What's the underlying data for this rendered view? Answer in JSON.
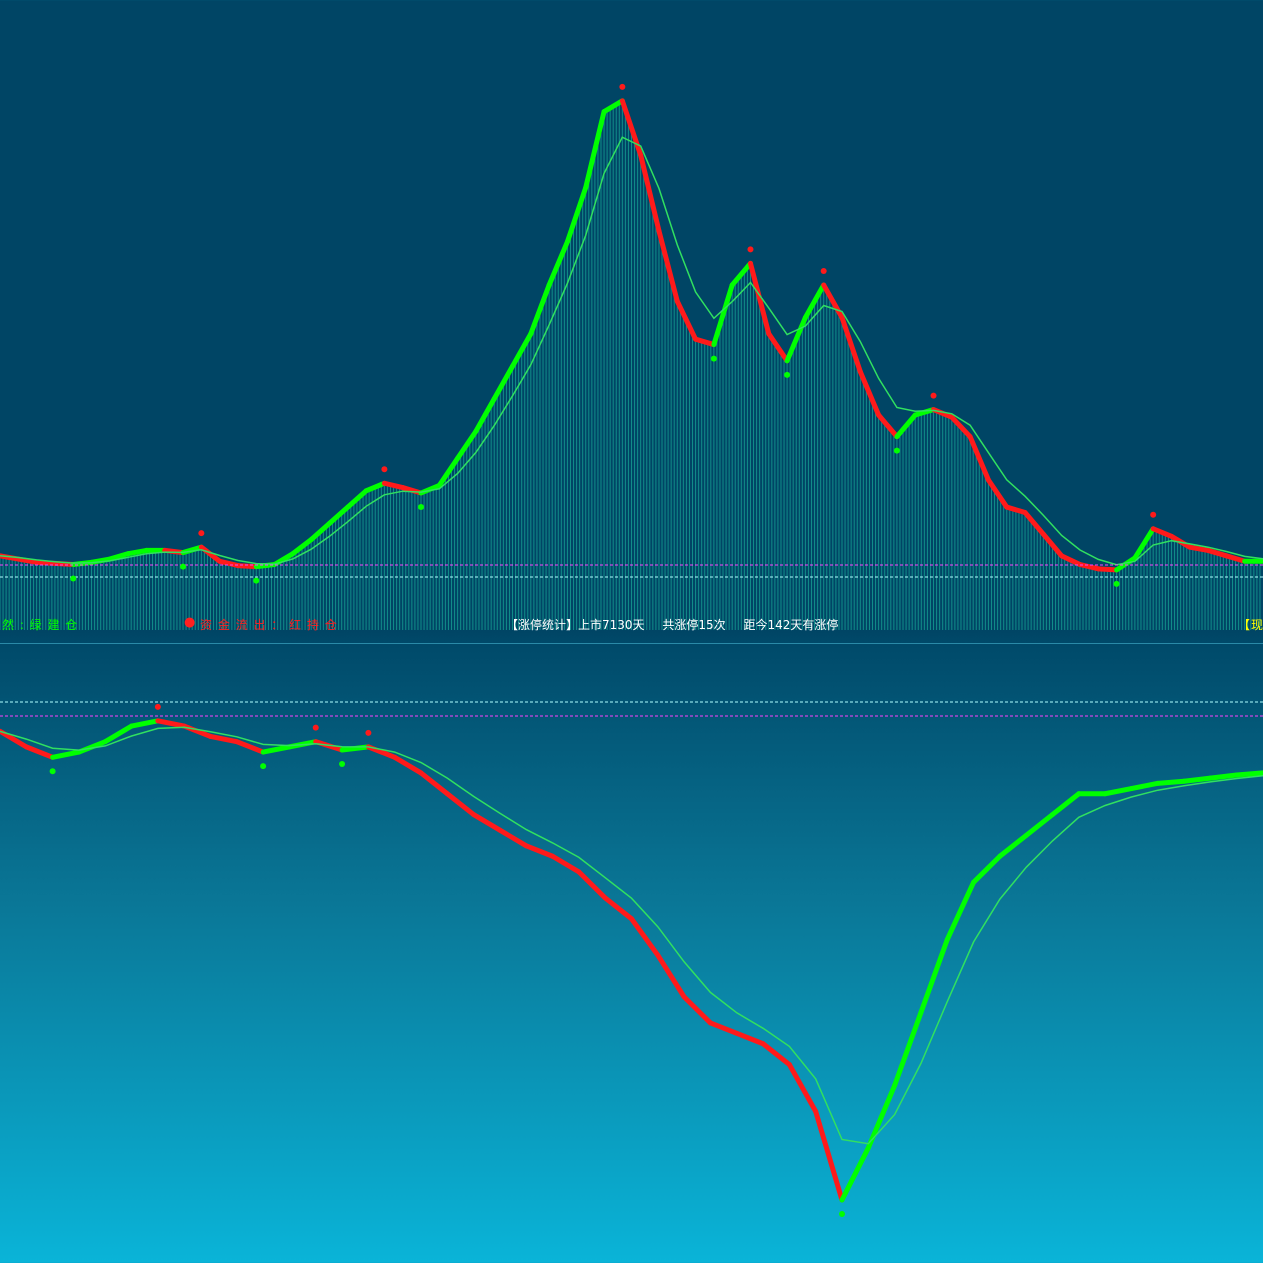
{
  "legend": {
    "green_text": "然 : 绿 建 仓",
    "red_dot": "●",
    "red_text": "资 金 流 出 ： 红 持 仓",
    "right_label": "【现价"
  },
  "stats": {
    "title": "【涨停统计】上市7130天",
    "count": "共涨停15次",
    "since": "距今142天有涨停"
  },
  "colors": {
    "up": "#00ff00",
    "down": "#ff1a1a",
    "slow_line": "#30e060",
    "bars": "#20c8a8",
    "ref_line_1": "#ff40ff",
    "ref_line_2": "#b0ffff"
  },
  "chart_data": [
    {
      "type": "line",
      "panel": "upper",
      "series": [
        {
          "values": [
            50,
            47,
            44,
            43,
            42,
            44,
            47,
            52,
            55,
            55,
            53,
            58,
            45,
            41,
            40,
            42,
            52,
            65,
            80,
            95,
            110,
            117,
            113,
            108,
            115,
            140,
            165,
            195,
            225,
            255,
            300,
            340,
            390,
            460,
            470,
            420,
            350,
            285,
            250,
            245,
            300,
            320,
            255,
            230,
            270,
            300,
            270,
            220,
            180,
            160,
            180,
            185,
            178,
            160,
            120,
            95,
            90,
            70,
            50,
            42,
            38,
            37,
            48,
            75,
            68,
            58,
            55,
            50,
            45,
            45
          ]
        }
      ]
    },
    {
      "type": "line",
      "panel": "lower",
      "series": [
        {
          "values": [
            -30,
            -45,
            -55,
            -50,
            -40,
            -25,
            -20,
            -25,
            -35,
            -40,
            -50,
            -45,
            -40,
            -48,
            -45,
            -55,
            -70,
            -90,
            -110,
            -125,
            -140,
            -150,
            -165,
            -190,
            -210,
            -245,
            -285,
            -310,
            -320,
            -330,
            -350,
            -395,
            -480,
            -430,
            -370,
            -300,
            -230,
            -175,
            -150,
            -130,
            -110,
            -90,
            -90,
            -85,
            -80,
            -78,
            -75,
            -72,
            -70
          ]
        }
      ]
    }
  ]
}
